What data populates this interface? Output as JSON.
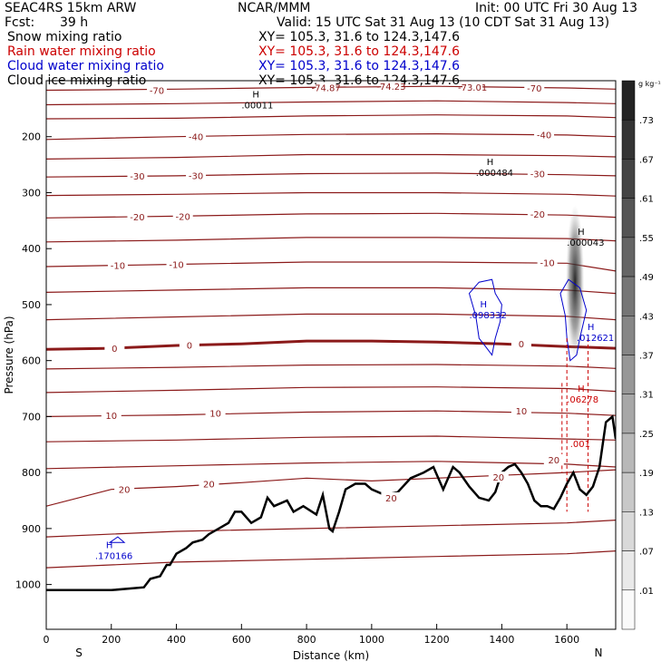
{
  "header": {
    "model": "SEAC4RS 15km ARW",
    "org": "NCAR/MMM",
    "init": "Init: 00 UTC Fri 30 Aug 13",
    "fcst_label": "Fcst:",
    "fcst_value": "39 h",
    "valid": "Valid: 15 UTC Sat 31 Aug 13 (10 CDT Sat 31 Aug 13)",
    "fields": [
      {
        "name": "Snow mixing ratio",
        "xy": "XY= 105.3, 31.6 to 124.3,147.6",
        "color": "#000000"
      },
      {
        "name": "Rain water mixing ratio",
        "xy": "XY= 105.3, 31.6 to 124.3,147.6",
        "color": "#cc0000"
      },
      {
        "name": "Cloud water mixing ratio",
        "xy": "XY= 105.3, 31.6 to 124.3,147.6",
        "color": "#0000cc"
      },
      {
        "name": "Cloud ice mixing ratio",
        "xy": "XY= 105.3, 31.6 to 124.3,147.6",
        "color": "#000000"
      }
    ]
  },
  "chart_data": {
    "type": "line",
    "xlabel": "Distance (km)",
    "ylabel": "Pressure (hPa)",
    "xlim": [
      0,
      1750
    ],
    "ylim": [
      1080,
      100
    ],
    "x_ticks": [
      0,
      200,
      400,
      600,
      800,
      1000,
      1200,
      1400,
      1600
    ],
    "y_ticks": [
      200,
      300,
      400,
      500,
      600,
      700,
      800,
      900,
      1000
    ],
    "x_end_labels": {
      "left": "S",
      "right": "N"
    },
    "colorbar": {
      "unit": "g kg⁻¹",
      "levels": [
        ".01",
        ".07",
        ".13",
        ".19",
        ".25",
        ".31",
        ".37",
        ".43",
        ".49",
        ".55",
        ".61",
        ".67",
        ".73"
      ]
    },
    "colors": {
      "temperature": "#8b1a1a",
      "rain": "#cc0000",
      "cloud_water": "#0000cc",
      "terrain": "#000000"
    },
    "terrain_pressure": {
      "x": [
        0,
        100,
        200,
        300,
        320,
        350,
        370,
        380,
        400,
        430,
        450,
        480,
        500,
        530,
        560,
        580,
        600,
        630,
        660,
        680,
        700,
        740,
        760,
        790,
        830,
        850,
        870,
        880,
        900,
        920,
        950,
        980,
        1000,
        1040,
        1080,
        1120,
        1160,
        1190,
        1220,
        1250,
        1270,
        1300,
        1330,
        1360,
        1380,
        1400,
        1420,
        1440,
        1460,
        1480,
        1500,
        1520,
        1540,
        1560,
        1580,
        1600,
        1620,
        1640,
        1660,
        1680,
        1700,
        1720,
        1740,
        1750
      ],
      "y": [
        1010,
        1010,
        1010,
        1005,
        990,
        985,
        965,
        965,
        945,
        935,
        925,
        920,
        910,
        900,
        890,
        870,
        870,
        890,
        880,
        845,
        860,
        850,
        870,
        860,
        875,
        840,
        900,
        905,
        870,
        830,
        820,
        820,
        830,
        840,
        835,
        810,
        800,
        790,
        830,
        790,
        800,
        825,
        845,
        850,
        835,
        800,
        790,
        785,
        800,
        820,
        850,
        860,
        860,
        865,
        845,
        820,
        800,
        830,
        840,
        825,
        790,
        710,
        700,
        740
      ]
    },
    "series": [
      {
        "label": "-70",
        "x": [
          0,
          400,
          800,
          1200,
          1600,
          1750
        ],
        "y": [
          117,
          115,
          112,
          110,
          113,
          115
        ]
      },
      {
        "label": "",
        "x": [
          0,
          400,
          800,
          1200,
          1600,
          1750
        ],
        "y": [
          143,
          141,
          138,
          136,
          139,
          141
        ]
      },
      {
        "label": "",
        "x": [
          0,
          400,
          800,
          1200,
          1600,
          1750
        ],
        "y": [
          168,
          167,
          163,
          161,
          163,
          166
        ]
      },
      {
        "label": "-40",
        "x": [
          0,
          400,
          800,
          1200,
          1600,
          1750
        ],
        "y": [
          205,
          200,
          196,
          195,
          197,
          200
        ]
      },
      {
        "label": "",
        "x": [
          0,
          400,
          800,
          1200,
          1600,
          1750
        ],
        "y": [
          240,
          237,
          232,
          232,
          234,
          236
        ]
      },
      {
        "label": "-30",
        "x": [
          0,
          400,
          800,
          1200,
          1600,
          1750
        ],
        "y": [
          272,
          270,
          266,
          265,
          268,
          270
        ]
      },
      {
        "label": "",
        "x": [
          0,
          400,
          800,
          1200,
          1600,
          1750
        ],
        "y": [
          305,
          303,
          300,
          300,
          303,
          306
        ]
      },
      {
        "label": "-20",
        "x": [
          0,
          400,
          800,
          1200,
          1600,
          1750
        ],
        "y": [
          345,
          342,
          338,
          337,
          340,
          344
        ]
      },
      {
        "label": "",
        "x": [
          0,
          400,
          800,
          1200,
          1600,
          1750
        ],
        "y": [
          388,
          385,
          380,
          380,
          382,
          386
        ]
      },
      {
        "label": "-10",
        "x": [
          0,
          400,
          800,
          1200,
          1600,
          1750
        ],
        "y": [
          432,
          428,
          424,
          424,
          426,
          440
        ]
      },
      {
        "label": "",
        "x": [
          0,
          400,
          800,
          1200,
          1600,
          1750
        ],
        "y": [
          478,
          474,
          470,
          470,
          474,
          480
        ]
      },
      {
        "label": "",
        "x": [
          0,
          400,
          800,
          1200,
          1600,
          1750
        ],
        "y": [
          527,
          522,
          517,
          517,
          521,
          527
        ]
      },
      {
        "label": "0",
        "x": [
          0,
          200,
          400,
          600,
          800,
          1000,
          1200,
          1400,
          1600,
          1750
        ],
        "y": [
          580,
          578,
          573,
          570,
          565,
          565,
          567,
          570,
          575,
          578
        ]
      },
      {
        "label": "",
        "x": [
          0,
          400,
          800,
          1200,
          1600,
          1750
        ],
        "y": [
          615,
          612,
          608,
          607,
          610,
          614
        ]
      },
      {
        "label": "",
        "x": [
          0,
          400,
          800,
          1200,
          1600,
          1750
        ],
        "y": [
          657,
          653,
          648,
          647,
          650,
          655
        ]
      },
      {
        "label": "10",
        "x": [
          0,
          400,
          800,
          1200,
          1600,
          1750
        ],
        "y": [
          700,
          697,
          692,
          690,
          694,
          698
        ]
      },
      {
        "label": "",
        "x": [
          0,
          400,
          800,
          1200,
          1600,
          1750
        ],
        "y": [
          745,
          742,
          737,
          735,
          740,
          742
        ]
      },
      {
        "label": "",
        "x": [
          0,
          400,
          800,
          1200,
          1600,
          1750
        ],
        "y": [
          793,
          788,
          783,
          780,
          785,
          790
        ]
      },
      {
        "label": "20",
        "x": [
          0,
          200,
          400,
          600,
          800,
          1000,
          1200,
          1400,
          1600,
          1750
        ],
        "y": [
          860,
          830,
          825,
          818,
          810,
          815,
          810,
          805,
          800,
          795
        ]
      },
      {
        "label": "",
        "x": [
          0,
          400,
          800,
          1200,
          1600,
          1750
        ],
        "y": [
          915,
          905,
          900,
          895,
          890,
          885
        ]
      },
      {
        "label": "",
        "x": [
          0,
          400,
          800,
          1200,
          1600,
          1750
        ],
        "y": [
          970,
          960,
          955,
          950,
          945,
          940
        ]
      }
    ],
    "contour_labels": [
      {
        "text": "-70",
        "x": 340,
        "p": 117
      },
      {
        "text": "-74.87",
        "x": 860,
        "p": 112
      },
      {
        "text": "-74.23",
        "x": 1060,
        "p": 110
      },
      {
        "text": "-73.01",
        "x": 1310,
        "p": 111
      },
      {
        "text": "-70",
        "x": 1500,
        "p": 113
      },
      {
        "text": "-40",
        "x": 460,
        "p": 200
      },
      {
        "text": "-40",
        "x": 1530,
        "p": 196
      },
      {
        "text": "-30",
        "x": 280,
        "p": 270
      },
      {
        "text": "-30",
        "x": 460,
        "p": 269
      },
      {
        "text": "-30",
        "x": 1510,
        "p": 266
      },
      {
        "text": "-20",
        "x": 280,
        "p": 343
      },
      {
        "text": "-20",
        "x": 420,
        "p": 342
      },
      {
        "text": "-20",
        "x": 1510,
        "p": 338
      },
      {
        "text": "-10",
        "x": 220,
        "p": 430
      },
      {
        "text": "-10",
        "x": 400,
        "p": 428
      },
      {
        "text": "-10",
        "x": 1540,
        "p": 425
      },
      {
        "text": "0",
        "x": 210,
        "p": 578
      },
      {
        "text": "0",
        "x": 440,
        "p": 572
      },
      {
        "text": "0",
        "x": 1460,
        "p": 570
      },
      {
        "text": "10",
        "x": 200,
        "p": 698
      },
      {
        "text": "10",
        "x": 520,
        "p": 694
      },
      {
        "text": "10",
        "x": 1460,
        "p": 690
      },
      {
        "text": "20",
        "x": 240,
        "p": 830
      },
      {
        "text": "20",
        "x": 500,
        "p": 820
      },
      {
        "text": "20",
        "x": 1060,
        "p": 845
      },
      {
        "text": "20",
        "x": 1390,
        "p": 808
      },
      {
        "text": "20",
        "x": 1560,
        "p": 777
      }
    ],
    "extrema_labels": [
      {
        "h": "H",
        "value": ".00011",
        "x": 600,
        "p": 140,
        "color": "#000000"
      },
      {
        "h": "H",
        "value": ".000484",
        "x": 1320,
        "p": 260,
        "color": "#000000"
      },
      {
        "h": "H",
        "value": ".000043",
        "x": 1600,
        "p": 385,
        "color": "#000000"
      },
      {
        "h": "H",
        "value": ".098332",
        "x": 1300,
        "p": 515,
        "color": "#0000cc"
      },
      {
        "h": "H",
        "value": ".012621",
        "x": 1630,
        "p": 555,
        "color": "#0000cc"
      },
      {
        "h": "H",
        "value": ".06278",
        "x": 1600,
        "p": 665,
        "color": "#cc0000"
      },
      {
        "h": "",
        "value": ".001",
        "x": 1610,
        "p": 745,
        "color": "#cc0000"
      },
      {
        "h": "H",
        "value": ".170166",
        "x": 150,
        "p": 945,
        "color": "#0000cc"
      }
    ]
  }
}
